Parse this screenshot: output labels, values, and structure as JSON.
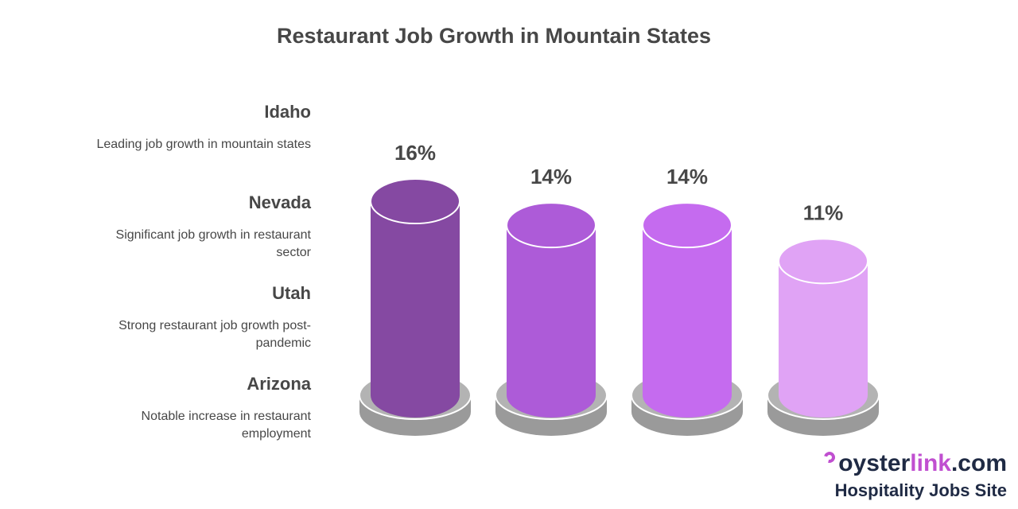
{
  "chart_data": {
    "type": "bar",
    "title": "Restaurant Job Growth in Mountain States",
    "categories": [
      "Idaho",
      "Nevada",
      "Utah",
      "Arizona"
    ],
    "values": [
      16,
      14,
      14,
      11
    ],
    "value_labels": [
      "16%",
      "14%",
      "14%",
      "11%"
    ],
    "unit": "%",
    "descriptions": [
      "Leading job growth in mountain states",
      "Significant job growth in restaurant sector",
      "Strong restaurant job growth post-pandemic",
      "Notable increase in restaurant employment"
    ],
    "colors": [
      "#8549a2",
      "#ad5bd8",
      "#c56bef",
      "#e0a3f5"
    ],
    "legend_position": "left",
    "grid": false
  },
  "brand": {
    "name_prefix": "oyster",
    "name_accent": "link",
    "name_suffix": ".com",
    "tagline": "Hospitality Jobs Site",
    "accent_color": "#c04fd0"
  }
}
